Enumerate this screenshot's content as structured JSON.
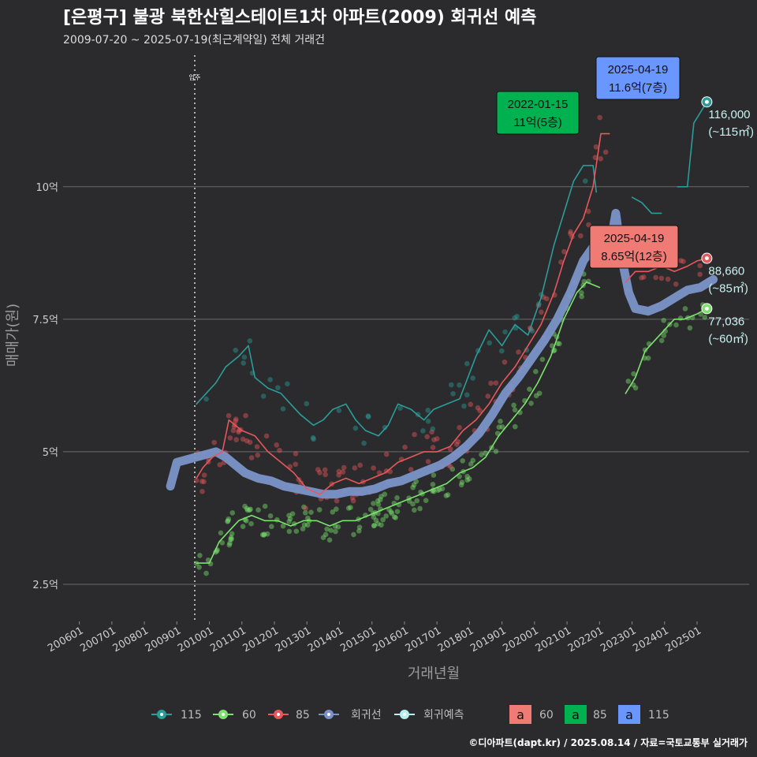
{
  "header": {
    "title": "[은평구] 불광 북한산힐스테이트1차 아파트(2009) 회귀선 예측",
    "subtitle": "2009-07-20 ~ 2025-07-19(최근계약일) 전체 거래건"
  },
  "footer": {
    "credit": "©디아파트(dapt.kr) / 2025.08.14 / 자료=국토교통부 실거래가"
  },
  "colors": {
    "s115": "#2a9d9a",
    "s60": "#7be36d",
    "s85": "#e8575c",
    "reg": "#7b93c9",
    "pred": "#b6f0ee",
    "boxPink": "#f07a74",
    "boxGreen": "#00b14f",
    "boxBlue": "#6a96ff"
  },
  "chart_data": {
    "type": "line",
    "title": "[은평구] 불광 북한산힐스테이트1차 아파트(2009) 회귀선 예측",
    "xlabel": "거래년월",
    "ylabel": "매매가(원)",
    "x_range": [
      2005.5,
      2026.6
    ],
    "ylim": [
      1.8,
      12.6
    ],
    "x_ticks": [
      "200601",
      "200701",
      "200801",
      "200901",
      "201001",
      "201101",
      "201201",
      "201301",
      "201401",
      "201501",
      "201601",
      "201701",
      "201801",
      "201901",
      "202001",
      "202101",
      "202201",
      "202301",
      "202401",
      "202501"
    ],
    "y_ticks": [
      {
        "value": 2.5,
        "label": "2.5억"
      },
      {
        "value": 5,
        "label": "5억"
      },
      {
        "value": 7.5,
        "label": "7.5억"
      },
      {
        "value": 10,
        "label": "10억"
      }
    ],
    "grid": true,
    "move_in": {
      "x": 2009.55,
      "label": "입주"
    },
    "series": [
      {
        "name": "115",
        "key": "s115",
        "points": [
          [
            2009.6,
            5.9
          ],
          [
            2009.9,
            6.1
          ],
          [
            2010.2,
            6.3
          ],
          [
            2010.5,
            6.6
          ],
          [
            2010.9,
            6.8
          ],
          [
            2011.2,
            7.0
          ],
          [
            2011.4,
            6.4
          ],
          [
            2011.8,
            6.2
          ],
          [
            2012.2,
            6.1
          ],
          [
            2012.5,
            5.9
          ],
          [
            2012.8,
            5.7
          ],
          [
            2013.2,
            5.5
          ],
          [
            2013.5,
            5.6
          ],
          [
            2013.8,
            5.8
          ],
          [
            2014.2,
            5.9
          ],
          [
            2014.5,
            5.6
          ],
          [
            2014.8,
            5.4
          ],
          [
            2015.2,
            5.3
          ],
          [
            2015.5,
            5.5
          ],
          [
            2015.8,
            5.9
          ],
          [
            2016.2,
            5.8
          ],
          [
            2016.6,
            5.6
          ],
          [
            2016.9,
            5.8
          ],
          [
            2017.3,
            5.9
          ],
          [
            2017.7,
            6.0
          ],
          [
            2018.2,
            6.8
          ],
          [
            2018.6,
            7.3
          ],
          [
            2019.0,
            7.0
          ],
          [
            2019.4,
            7.4
          ],
          [
            2019.8,
            7.2
          ],
          [
            2020.2,
            7.9
          ],
          [
            2020.6,
            8.9
          ],
          [
            2020.9,
            9.5
          ],
          [
            2021.2,
            10.1
          ],
          [
            2021.5,
            10.4
          ],
          [
            2021.8,
            10.4
          ],
          [
            2021.9,
            9.9
          ]
        ]
      },
      {
        "name": "115b",
        "key": "s115",
        "points": [
          [
            2023.0,
            9.8
          ],
          [
            2023.3,
            9.7
          ],
          [
            2023.6,
            9.5
          ],
          [
            2023.9,
            9.5
          ]
        ]
      },
      {
        "name": "115c",
        "key": "s115",
        "points": [
          [
            2024.4,
            10.0
          ],
          [
            2024.7,
            10.0
          ],
          [
            2024.9,
            11.2
          ],
          [
            2025.1,
            11.4
          ],
          [
            2025.3,
            11.6
          ]
        ]
      },
      {
        "name": "85",
        "key": "s85",
        "points": [
          [
            2009.6,
            4.5
          ],
          [
            2009.8,
            4.7
          ],
          [
            2010.1,
            4.9
          ],
          [
            2010.4,
            5.0
          ],
          [
            2010.6,
            5.6
          ],
          [
            2011.0,
            5.4
          ],
          [
            2011.4,
            5.3
          ],
          [
            2011.8,
            5.0
          ],
          [
            2012.2,
            4.8
          ],
          [
            2012.6,
            4.6
          ],
          [
            2013.0,
            4.3
          ],
          [
            2013.4,
            4.2
          ],
          [
            2013.8,
            4.4
          ],
          [
            2014.2,
            4.5
          ],
          [
            2014.6,
            4.4
          ],
          [
            2015.0,
            4.5
          ],
          [
            2015.4,
            4.6
          ],
          [
            2015.8,
            4.8
          ],
          [
            2016.2,
            4.9
          ],
          [
            2016.6,
            5.0
          ],
          [
            2017.0,
            5.0
          ],
          [
            2017.4,
            5.1
          ],
          [
            2017.8,
            5.4
          ],
          [
            2018.2,
            5.6
          ],
          [
            2018.6,
            5.9
          ],
          [
            2019.0,
            6.3
          ],
          [
            2019.4,
            6.6
          ],
          [
            2019.8,
            7.0
          ],
          [
            2020.2,
            7.4
          ],
          [
            2020.6,
            8.0
          ],
          [
            2020.9,
            8.6
          ],
          [
            2021.2,
            9.1
          ],
          [
            2021.5,
            9.4
          ],
          [
            2021.8,
            10.0
          ],
          [
            2022.04,
            11.0
          ],
          [
            2022.3,
            11.0
          ]
        ]
      },
      {
        "name": "85b",
        "key": "s85",
        "points": [
          [
            2022.8,
            8.2
          ],
          [
            2023.1,
            8.4
          ],
          [
            2023.5,
            8.4
          ],
          [
            2023.9,
            8.5
          ],
          [
            2024.3,
            8.4
          ],
          [
            2024.7,
            8.5
          ],
          [
            2025.0,
            8.6
          ],
          [
            2025.3,
            8.65
          ]
        ]
      },
      {
        "name": "60",
        "key": "s60",
        "points": [
          [
            2009.6,
            2.9
          ],
          [
            2010.0,
            2.9
          ],
          [
            2010.3,
            3.3
          ],
          [
            2010.6,
            3.5
          ],
          [
            2010.9,
            3.7
          ],
          [
            2011.3,
            3.8
          ],
          [
            2011.7,
            3.7
          ],
          [
            2012.1,
            3.7
          ],
          [
            2012.5,
            3.6
          ],
          [
            2012.9,
            3.7
          ],
          [
            2013.3,
            3.7
          ],
          [
            2013.7,
            3.6
          ],
          [
            2014.1,
            3.7
          ],
          [
            2014.5,
            3.7
          ],
          [
            2014.9,
            3.8
          ],
          [
            2015.3,
            3.9
          ],
          [
            2015.7,
            4.0
          ],
          [
            2016.1,
            4.1
          ],
          [
            2016.5,
            4.2
          ],
          [
            2016.9,
            4.3
          ],
          [
            2017.3,
            4.4
          ],
          [
            2017.7,
            4.6
          ],
          [
            2018.1,
            4.7
          ],
          [
            2018.5,
            4.9
          ],
          [
            2018.9,
            5.3
          ],
          [
            2019.3,
            5.6
          ],
          [
            2019.7,
            5.9
          ],
          [
            2020.1,
            6.3
          ],
          [
            2020.5,
            6.8
          ],
          [
            2020.9,
            7.5
          ],
          [
            2021.3,
            8.0
          ],
          [
            2021.6,
            8.2
          ],
          [
            2022.0,
            8.1
          ]
        ]
      },
      {
        "name": "60b",
        "key": "s60",
        "points": [
          [
            2022.8,
            6.1
          ],
          [
            2023.1,
            6.4
          ],
          [
            2023.4,
            6.9
          ],
          [
            2023.7,
            7.1
          ],
          [
            2024.0,
            7.3
          ],
          [
            2024.3,
            7.5
          ],
          [
            2024.6,
            7.5
          ],
          [
            2025.0,
            7.6
          ],
          [
            2025.3,
            7.7
          ]
        ]
      },
      {
        "name": "회귀선",
        "key": "reg",
        "points": [
          [
            2008.8,
            4.35
          ],
          [
            2009.0,
            4.8
          ],
          [
            2009.3,
            4.85
          ],
          [
            2009.6,
            4.9
          ],
          [
            2009.9,
            4.95
          ],
          [
            2010.2,
            5.0
          ],
          [
            2010.5,
            4.9
          ],
          [
            2010.8,
            4.75
          ],
          [
            2011.1,
            4.6
          ],
          [
            2011.5,
            4.5
          ],
          [
            2011.9,
            4.45
          ],
          [
            2012.3,
            4.35
          ],
          [
            2012.7,
            4.3
          ],
          [
            2013.1,
            4.25
          ],
          [
            2013.5,
            4.2
          ],
          [
            2013.9,
            4.2
          ],
          [
            2014.3,
            4.25
          ],
          [
            2014.7,
            4.25
          ],
          [
            2015.1,
            4.3
          ],
          [
            2015.5,
            4.4
          ],
          [
            2015.9,
            4.45
          ],
          [
            2016.3,
            4.55
          ],
          [
            2016.7,
            4.65
          ],
          [
            2017.1,
            4.75
          ],
          [
            2017.5,
            4.9
          ],
          [
            2017.9,
            5.1
          ],
          [
            2018.3,
            5.35
          ],
          [
            2018.7,
            5.7
          ],
          [
            2019.1,
            6.1
          ],
          [
            2019.5,
            6.4
          ],
          [
            2019.9,
            6.75
          ],
          [
            2020.3,
            7.1
          ],
          [
            2020.7,
            7.5
          ],
          [
            2021.1,
            8.0
          ],
          [
            2021.5,
            8.6
          ],
          [
            2021.9,
            8.95
          ],
          [
            2022.2,
            9.1
          ],
          [
            2022.4,
            9.15
          ],
          [
            2022.5,
            9.5
          ],
          [
            2022.7,
            8.6
          ],
          [
            2022.9,
            8.0
          ],
          [
            2023.1,
            7.7
          ],
          [
            2023.5,
            7.65
          ],
          [
            2023.9,
            7.75
          ],
          [
            2024.3,
            7.9
          ],
          [
            2024.7,
            8.05
          ],
          [
            2025.1,
            8.1
          ],
          [
            2025.5,
            8.25
          ]
        ]
      }
    ],
    "annotations": [
      {
        "date": "2022-01-15",
        "price": "11억(5층)",
        "x": 2022.04,
        "y": 11.0,
        "box": "boxGreen"
      },
      {
        "date": "2025-04-19",
        "price": "11.6억(7층)",
        "x": 2025.3,
        "y": 11.6,
        "box": "boxBlue"
      },
      {
        "date": "2025-04-19",
        "price": "8.65억(12층)",
        "x": 2025.3,
        "y": 8.65,
        "box": "boxPink"
      }
    ],
    "end_labels": [
      {
        "series": "115",
        "value": "116,000",
        "area": "(~115㎡)"
      },
      {
        "series": "85",
        "value": "88,660",
        "area": "(~85㎡)"
      },
      {
        "series": "60",
        "value": "77,036",
        "area": "(~60㎡)"
      }
    ],
    "legend": {
      "placement": "bottom",
      "line_items": [
        {
          "label": "115",
          "key": "s115"
        },
        {
          "label": "60",
          "key": "s60"
        },
        {
          "label": "85",
          "key": "s85"
        },
        {
          "label": "회귀선",
          "key": "reg"
        },
        {
          "label": "회귀예측",
          "key": "pred"
        }
      ],
      "box_items": [
        {
          "glyph": "a",
          "label": "60",
          "key": "boxPink"
        },
        {
          "glyph": "a",
          "label": "85",
          "key": "boxGreen"
        },
        {
          "glyph": "a",
          "label": "115",
          "key": "boxBlue"
        }
      ]
    }
  }
}
